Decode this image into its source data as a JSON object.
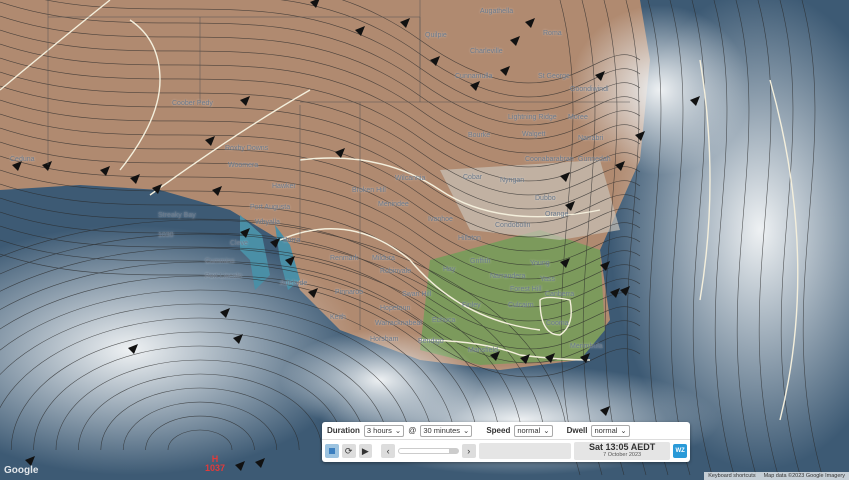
{
  "map": {
    "towns": [
      "Coober Pedy",
      "Roxby Downs",
      "Woomera",
      "Hawker",
      "Port Augusta",
      "Whyalla",
      "Cleve",
      "Ceduna",
      "Streaky Bay",
      "Cummins",
      "Port Lincoln",
      "Burra",
      "Adelaide",
      "Renmark",
      "Mildura",
      "Pinnaroo",
      "Keith",
      "Horsham",
      "Bendigo",
      "Warracknabeal",
      "Hopetoun",
      "Robinvale",
      "Swan Hill",
      "Echuca",
      "Mansfield",
      "Finley",
      "Hay",
      "Griffith",
      "Narrandera",
      "Young",
      "Yass",
      "Canberra",
      "Forest Hill",
      "Culcairn",
      "Cooma",
      "Merimbula",
      "Broken Hill",
      "Menindee",
      "Ivanhoe",
      "Hillston",
      "Condobolin",
      "Cobar",
      "Nyngan",
      "Bourke",
      "Walgett",
      "Lightning Ridge",
      "Moree",
      "Cunnamulla",
      "Quilpie",
      "Charleville",
      "Roma",
      "St George",
      "Goondiwindi",
      "Dubbo",
      "Orange",
      "Narrabri",
      "Gunnedah",
      "Coonabarabran",
      "Wilcannia",
      "Augathella",
      "Bendigo"
    ],
    "high_pressure": {
      "letter": "H",
      "value": "1037"
    },
    "isobar_label": "1030",
    "google_logo": "Google",
    "footer": {
      "shortcuts": "Keyboard shortcuts",
      "attribution": "Map data ©2023 Google Imagery"
    }
  },
  "controls": {
    "duration_label": "Duration",
    "duration_value": "3 hours",
    "at": "@",
    "interval_value": "30 minutes",
    "speed_label": "Speed",
    "speed_value": "normal",
    "dwell_label": "Dwell",
    "dwell_value": "normal",
    "time": "Sat 13:05 AEDT",
    "date": "7 October 2023",
    "brand": "WZ",
    "progress": 0.85
  },
  "colors": {
    "land": "#b08a70",
    "vegetation": "#7c9a5c",
    "ocean": "#3d5a74",
    "cloud": "#e8ecef",
    "isobar": "#2a2a2a",
    "front": "#f4efdc",
    "brand": "#2a9ad8",
    "high": "#e23a3a"
  }
}
